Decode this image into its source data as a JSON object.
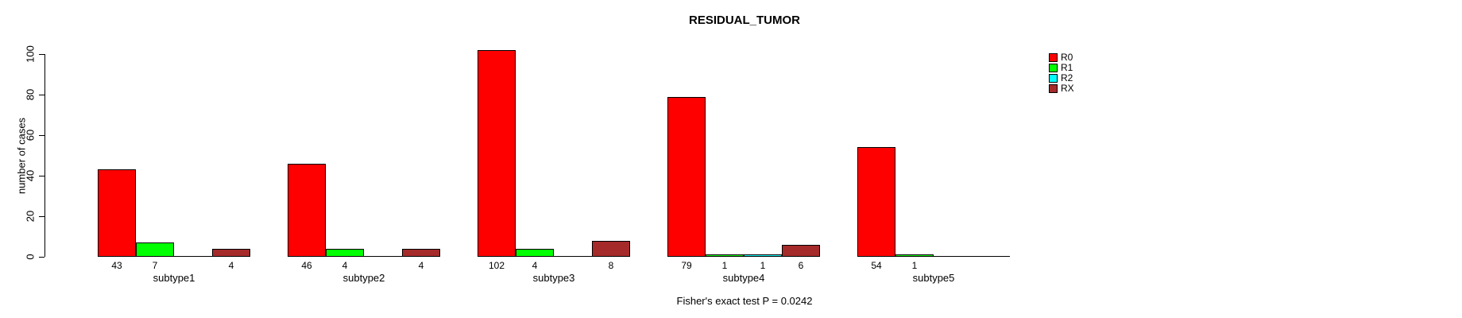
{
  "title": "RESIDUAL_TUMOR",
  "footnote": "Fisher's exact test P = 0.0242",
  "colors": {
    "R0": "#FF0000",
    "R1": "#00FF00",
    "R2": "#00FFFF",
    "RX": "#A52A2A"
  },
  "chart_data": {
    "type": "bar",
    "grouped": true,
    "title": "RESIDUAL_TUMOR",
    "xlabel": "",
    "ylabel": "number of cases",
    "ylim": [
      0,
      100
    ],
    "yticks": [
      0,
      20,
      40,
      60,
      80,
      100
    ],
    "grid": false,
    "legend_position": "topright",
    "categories": [
      "subtype1",
      "subtype2",
      "subtype3",
      "subtype4",
      "subtype5"
    ],
    "series": [
      {
        "name": "R0",
        "color": "#FF0000",
        "values": [
          43,
          46,
          102,
          79,
          54
        ]
      },
      {
        "name": "R1",
        "color": "#00FF00",
        "values": [
          7,
          4,
          4,
          1,
          1
        ]
      },
      {
        "name": "R2",
        "color": "#00FFFF",
        "values": [
          0,
          0,
          0,
          1,
          0
        ]
      },
      {
        "name": "RX",
        "color": "#A52A2A",
        "values": [
          4,
          4,
          8,
          6,
          0
        ]
      }
    ],
    "bar_value_labels": "shown under each non-zero bar",
    "annotation": "Fisher's exact test P = 0.0242"
  }
}
